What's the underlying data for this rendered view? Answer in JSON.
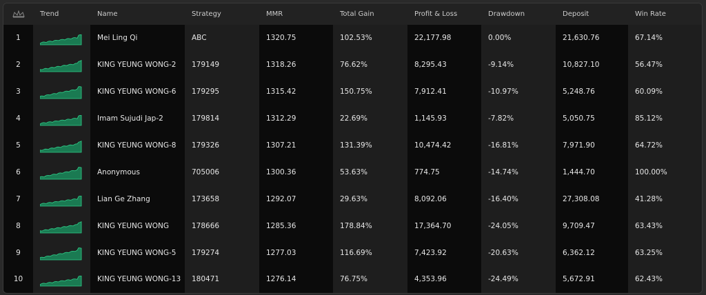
{
  "table": {
    "columns": [
      "Trend",
      "Name",
      "Strategy",
      "MMR",
      "Total Gain",
      "Profit & Loss",
      "Drawdown",
      "Deposit",
      "Win Rate"
    ],
    "rows": [
      [
        "1",
        "Mei Ling Qi",
        "ABC",
        "1320.75",
        "102.53%",
        "22,177.98",
        "0.00%",
        "21,630.76",
        "67.14%"
      ],
      [
        "2",
        "KING YEUNG WONG-2",
        "179149",
        "1318.26",
        "76.62%",
        "8,295.43",
        "-9.14%",
        "10,827.10",
        "56.47%"
      ],
      [
        "3",
        "KING YEUNG WONG-6",
        "179295",
        "1315.42",
        "150.75%",
        "7,912.41",
        "-10.97%",
        "5,248.76",
        "60.09%"
      ],
      [
        "4",
        "Imam Sujudi Jap-2",
        "179814",
        "1312.29",
        "22.69%",
        "1,145.93",
        "-7.82%",
        "5,050.75",
        "85.12%"
      ],
      [
        "5",
        "KING YEUNG WONG-8",
        "179326",
        "1307.21",
        "131.39%",
        "10,474.42",
        "-16.81%",
        "7,971.90",
        "64.72%"
      ],
      [
        "6",
        "Anonymous",
        "705006",
        "1300.36",
        "53.63%",
        "774.75",
        "-14.74%",
        "1,444.70",
        "100.00%"
      ],
      [
        "7",
        "Lian Ge Zhang",
        "173658",
        "1292.07",
        "29.63%",
        "8,092.06",
        "-16.40%",
        "27,308.08",
        "41.28%"
      ],
      [
        "8",
        "KING YEUNG WONG",
        "178666",
        "1285.36",
        "178.84%",
        "17,364.70",
        "-24.05%",
        "9,709.47",
        "63.43%"
      ],
      [
        "9",
        "KING YEUNG WONG-5",
        "179274",
        "1277.03",
        "116.69%",
        "7,423.92",
        "-20.63%",
        "6,362.12",
        "63.25%"
      ],
      [
        "10",
        "KING YEUNG WONG-13",
        "180471",
        "1276.14",
        "76.75%",
        "4,353.96",
        "-24.49%",
        "5,672.91",
        "62.43%"
      ]
    ]
  }
}
